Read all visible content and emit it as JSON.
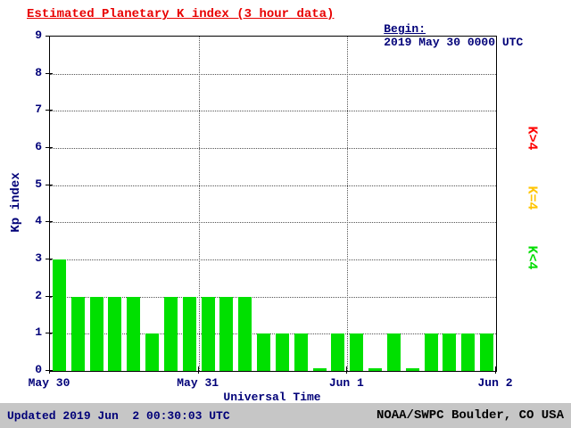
{
  "header": {
    "title": "Estimated Planetary K index (3 hour data)",
    "begin_label": "Begin:",
    "begin_value": "2019 May 30 0000 UTC"
  },
  "chart_data": {
    "type": "bar",
    "title": "Estimated Planetary K index (3 hour data)",
    "begin": "2019 May 30 0000 UTC",
    "xlabel": "Universal Time",
    "ylabel": "Kp index",
    "ylim": [
      0,
      9
    ],
    "y_ticks": [
      0,
      1,
      2,
      3,
      4,
      5,
      6,
      7,
      8,
      9
    ],
    "days": 3,
    "bars_per_day": 8,
    "interval_hours": 3,
    "x_tick_labels": [
      "May 30",
      "May 31",
      "Jun 1",
      "Jun 2"
    ],
    "values": [
      3,
      2,
      2,
      2,
      2,
      1,
      2,
      2,
      2,
      2,
      2,
      1,
      1,
      1,
      0,
      1,
      1,
      0,
      1,
      0,
      1,
      1,
      1,
      1
    ],
    "grid": "dotted horizontal at each Kp unit, dotted vertical at day boundaries",
    "legend_position": "right, rotated 90deg",
    "color_rule": "green if K<4, yellow if K=4, red if K>4"
  },
  "legend": {
    "items": [
      {
        "label": "K>4",
        "color": "#ff0000"
      },
      {
        "label": "K=4",
        "color": "#ffc400"
      },
      {
        "label": "K<4",
        "color": "#00dd00"
      }
    ]
  },
  "footer": {
    "updated": "Updated 2019 Jun  2 00:30:03 UTC",
    "credit": "NOAA/SWPC Boulder, CO USA"
  },
  "colors": {
    "bar_green": "#00e000",
    "bar_yellow": "#ffc400",
    "bar_red": "#ff0000",
    "title_red": "#e80000",
    "text_navy": "#000078",
    "footer_bg": "#c6c6c6"
  }
}
